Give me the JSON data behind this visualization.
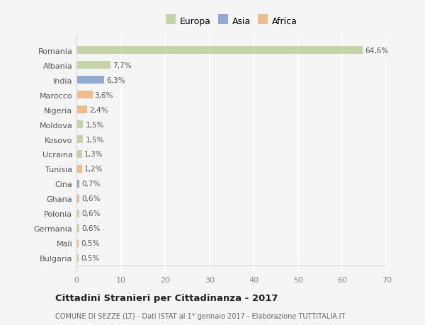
{
  "categories": [
    "Bulgaria",
    "Mali",
    "Germania",
    "Polonia",
    "Ghana",
    "Cina",
    "Tunisia",
    "Ucraina",
    "Kosovo",
    "Moldova",
    "Nigeria",
    "Marocco",
    "India",
    "Albania",
    "Romania"
  ],
  "values": [
    0.5,
    0.5,
    0.6,
    0.6,
    0.6,
    0.7,
    1.2,
    1.3,
    1.5,
    1.5,
    2.4,
    3.6,
    6.3,
    7.7,
    64.6
  ],
  "labels": [
    "0,5%",
    "0,5%",
    "0,6%",
    "0,6%",
    "0,6%",
    "0,7%",
    "1,2%",
    "1,3%",
    "1,5%",
    "1,5%",
    "2,4%",
    "3,6%",
    "6,3%",
    "7,7%",
    "64,6%"
  ],
  "colors": [
    "#b5c98e",
    "#f0a868",
    "#b5c98e",
    "#b5c98e",
    "#f0a868",
    "#7090c8",
    "#f0a868",
    "#b5c98e",
    "#b5c98e",
    "#b5c98e",
    "#f0a868",
    "#f0a868",
    "#7090c8",
    "#b5c98e",
    "#b5c98e"
  ],
  "legend_labels": [
    "Europa",
    "Asia",
    "Africa"
  ],
  "legend_colors": [
    "#b5c98e",
    "#7090c8",
    "#f0a868"
  ],
  "xlim": [
    0,
    70
  ],
  "xticks": [
    0,
    10,
    20,
    30,
    40,
    50,
    60,
    70
  ],
  "title": "Cittadini Stranieri per Cittadinanza - 2017",
  "subtitle": "COMUNE DI SEZZE (LT) - Dati ISTAT al 1° gennaio 2017 - Elaborazione TUTTITALIA.IT",
  "background_color": "#f5f5f5",
  "grid_color": "#ffffff",
  "bar_alpha": 0.75
}
